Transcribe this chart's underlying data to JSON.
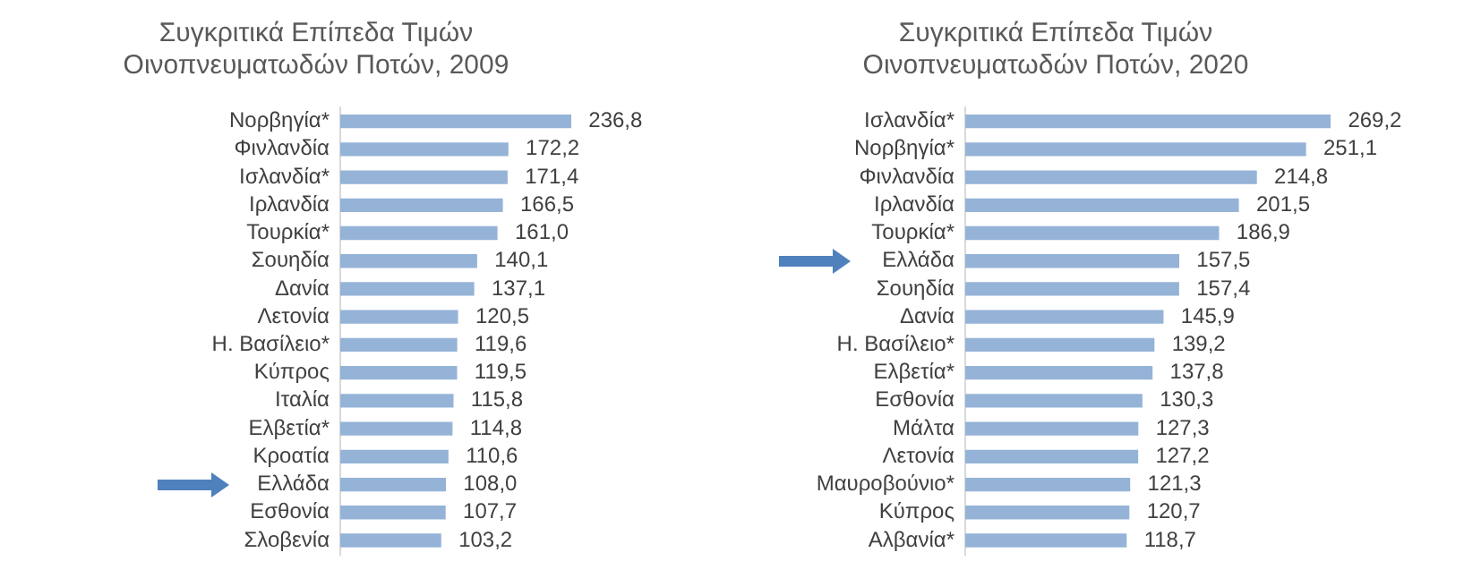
{
  "chart_data": [
    {
      "type": "bar",
      "orientation": "horizontal",
      "title": "Συγκριτικά Επίπεδα Τιμών Οινοπνευματωδών Ποτών, 2009",
      "color": "#95b3d7",
      "categories": [
        "Νορβηγία*",
        "Φινλανδία",
        "Ισλανδία*",
        "Ιρλανδία",
        "Τουρκία*",
        "Σουηδία",
        "Δανία",
        "Λετονία",
        "Η. Βασίλειο*",
        "Κύπρος",
        "Ιταλία",
        "Ελβετία*",
        "Κροατία",
        "Ελλάδα",
        "Εσθονία",
        "Σλοβενία"
      ],
      "values": [
        236.8,
        172.2,
        171.4,
        166.5,
        161.0,
        140.1,
        137.1,
        120.5,
        119.6,
        119.5,
        115.8,
        114.8,
        110.6,
        108.0,
        107.7,
        103.2
      ],
      "value_labels": [
        "236,8",
        "172,2",
        "171,4",
        "166,5",
        "161,0",
        "140,1",
        "137,1",
        "120,5",
        "119,6",
        "119,5",
        "115,8",
        "114,8",
        "110,6",
        "108,0",
        "107,7",
        "103,2"
      ]
    },
    {
      "type": "bar",
      "orientation": "horizontal",
      "title": "Συγκριτικά Επίπεδα Τιμών Οινοπνευματωδών Ποτών, 2020",
      "color": "#95b3d7",
      "categories": [
        "Ισλανδία*",
        "Νορβηγία*",
        "Φινλανδία",
        "Ιρλανδία",
        "Τουρκία*",
        "Ελλάδα",
        "Σουηδία",
        "Δανία",
        "Η. Βασίλειο*",
        "Ελβετία*",
        "Εσθονία",
        "Μάλτα",
        "Λετονία",
        "Μαυροβούνιο*",
        "Κύπρος",
        "Αλβανία*"
      ],
      "values": [
        269.2,
        251.1,
        214.8,
        201.5,
        186.9,
        157.5,
        157.4,
        145.9,
        139.2,
        137.8,
        130.3,
        127.3,
        127.2,
        121.3,
        120.7,
        118.7
      ],
      "value_labels": [
        "269,2",
        "251,1",
        "214,8",
        "201,5",
        "186,9",
        "157,5",
        "157,4",
        "145,9",
        "139,2",
        "137,8",
        "130,3",
        "127,3",
        "127,2",
        "121,3",
        "120,7",
        "118,7"
      ]
    }
  ]
}
